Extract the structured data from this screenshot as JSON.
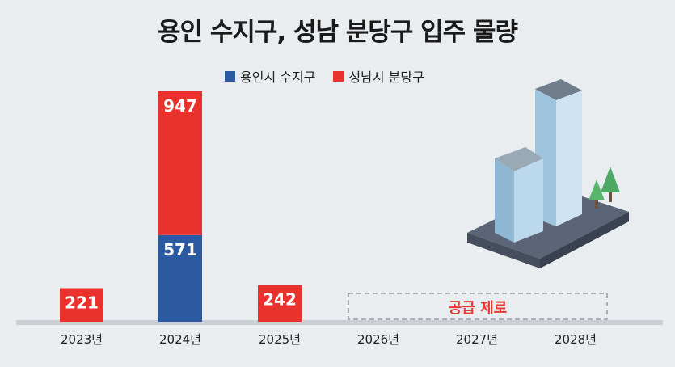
{
  "chart_data": {
    "type": "bar",
    "stacked": true,
    "title": "용인 수지구, 성남 분당구 입주 물량",
    "categories": [
      "2023년",
      "2024년",
      "2025년",
      "2026년",
      "2027년",
      "2028년"
    ],
    "series": [
      {
        "name": "용인시 수지구",
        "color": "#2c5aa0",
        "values": [
          0,
          571,
          0,
          0,
          0,
          0
        ]
      },
      {
        "name": "성남시 분당구",
        "color": "#e9322e",
        "values": [
          221,
          947,
          242,
          0,
          0,
          0
        ]
      }
    ],
    "annotation": "공급 제로",
    "legend_position": "top-center",
    "grid": false
  }
}
